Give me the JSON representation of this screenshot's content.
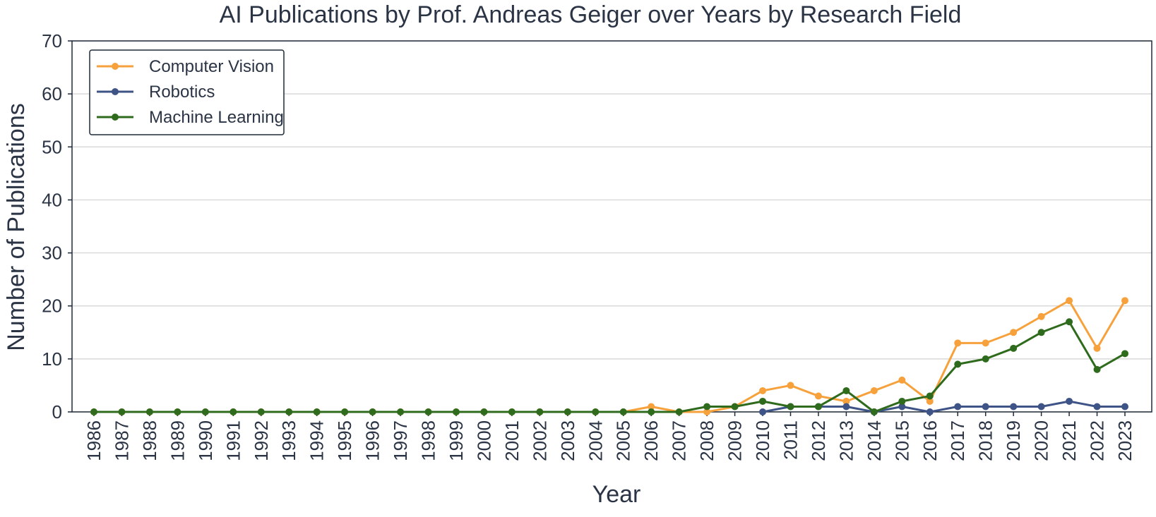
{
  "chart_data": {
    "type": "line",
    "title": "AI Publications by Prof. Andreas Geiger over Years by Research Field",
    "xlabel": "Year",
    "ylabel": "Number of Publications",
    "ylim": [
      0,
      70
    ],
    "yticks": [
      "0",
      "10",
      "20",
      "30",
      "40",
      "50",
      "60",
      "70"
    ],
    "grid": "horizontal",
    "legend_position": "top-left",
    "categories": [
      "1986",
      "1987",
      "1988",
      "1989",
      "1990",
      "1991",
      "1992",
      "1993",
      "1994",
      "1995",
      "1996",
      "1997",
      "1998",
      "1999",
      "2000",
      "2001",
      "2002",
      "2003",
      "2004",
      "2005",
      "2006",
      "2007",
      "2008",
      "2009",
      "2010",
      "2011",
      "2012",
      "2013",
      "2014",
      "2015",
      "2016",
      "2017",
      "2018",
      "2019",
      "2020",
      "2021",
      "2022",
      "2023"
    ],
    "series": [
      {
        "name": "Computer Vision",
        "color": "#f7a13c",
        "values": [
          0,
          0,
          0,
          0,
          0,
          0,
          0,
          0,
          0,
          0,
          0,
          0,
          0,
          0,
          0,
          0,
          0,
          0,
          0,
          0,
          1,
          0,
          0,
          1,
          4,
          5,
          3,
          2,
          4,
          6,
          2,
          13,
          13,
          15,
          18,
          21,
          12,
          21
        ]
      },
      {
        "name": "Robotics",
        "color": "#3f5486",
        "values": [
          null,
          null,
          null,
          null,
          null,
          null,
          null,
          null,
          null,
          null,
          null,
          null,
          null,
          null,
          null,
          null,
          null,
          null,
          null,
          null,
          null,
          null,
          null,
          null,
          0,
          1,
          1,
          1,
          0,
          1,
          0,
          1,
          1,
          1,
          1,
          2,
          1,
          1
        ]
      },
      {
        "name": "Machine Learning",
        "color": "#2f6b1d",
        "values": [
          0,
          0,
          0,
          0,
          0,
          0,
          0,
          0,
          0,
          0,
          0,
          0,
          0,
          0,
          0,
          0,
          0,
          0,
          0,
          0,
          0,
          0,
          1,
          1,
          2,
          1,
          1,
          4,
          0,
          2,
          3,
          9,
          10,
          12,
          15,
          17,
          8,
          11
        ]
      }
    ]
  }
}
